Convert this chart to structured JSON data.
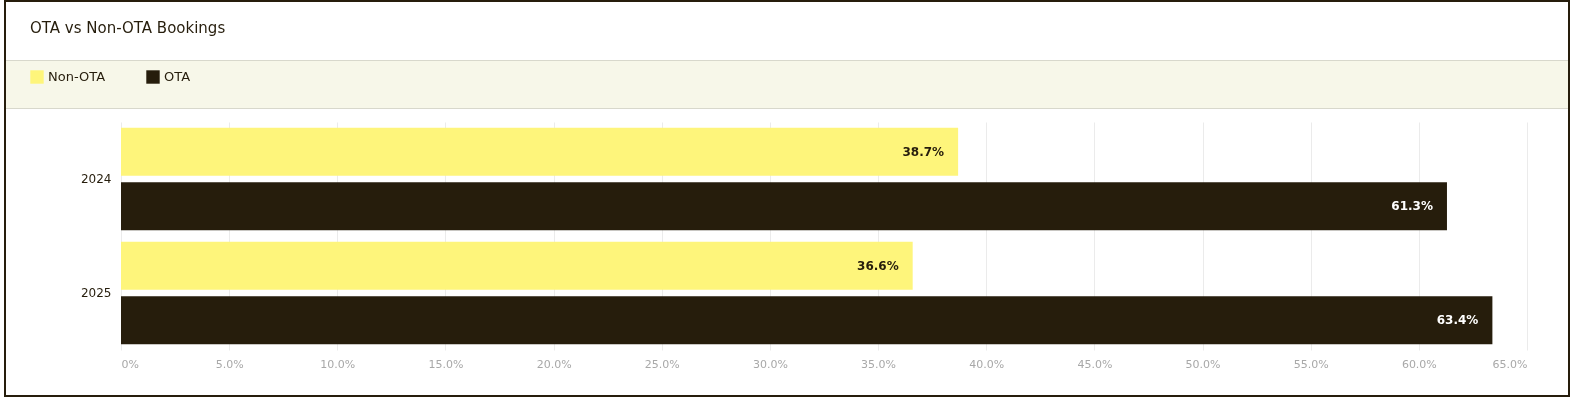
{
  "chart_data": {
    "type": "bar",
    "orientation": "horizontal",
    "title": "OTA vs Non-OTA Bookings",
    "categories": [
      "2024",
      "2025"
    ],
    "series": [
      {
        "name": "Non-OTA",
        "color": "#fef57b",
        "values": [
          38.7,
          36.6
        ],
        "value_labels": [
          "38.7%",
          "36.6%"
        ]
      },
      {
        "name": "OTA",
        "color": "#261d0c",
        "values": [
          61.3,
          63.4
        ],
        "value_labels": [
          "61.3%",
          "63.4%"
        ]
      }
    ],
    "xlim": [
      0,
      65
    ],
    "xticks": [
      {
        "value": 0,
        "label": "0%"
      },
      {
        "value": 5,
        "label": "5.0%"
      },
      {
        "value": 10,
        "label": "10.0%"
      },
      {
        "value": 15,
        "label": "15.0%"
      },
      {
        "value": 20,
        "label": "20.0%"
      },
      {
        "value": 25,
        "label": "25.0%"
      },
      {
        "value": 30,
        "label": "30.0%"
      },
      {
        "value": 35,
        "label": "35.0%"
      },
      {
        "value": 40,
        "label": "40.0%"
      },
      {
        "value": 45,
        "label": "45.0%"
      },
      {
        "value": 50,
        "label": "50.0%"
      },
      {
        "value": 55,
        "label": "55.0%"
      },
      {
        "value": 60,
        "label": "60.0%"
      },
      {
        "value": 65,
        "label": "65.0%"
      }
    ],
    "grid": "x",
    "legend": "top left"
  }
}
